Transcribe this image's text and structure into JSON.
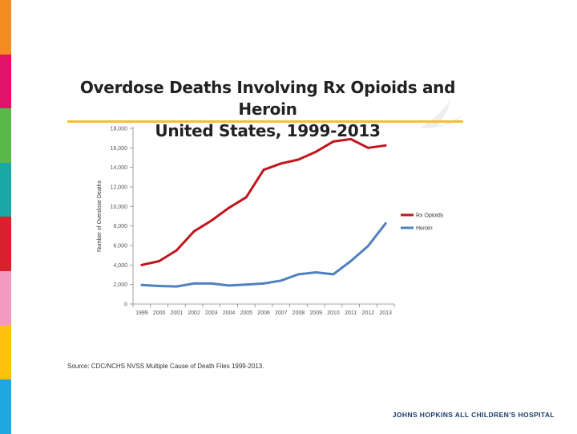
{
  "slide": {
    "title_line1": "Overdose Deaths Involving Rx Opioids and Heroin",
    "title_line2": "United States, 1999-2013",
    "source": "Source: CDC/NCHS NVSS Multiple Cause of Death Files 1999-2013.",
    "footer": "JOHNS HOPKINS ALL CHILDREN'S HOSPITAL"
  },
  "colors": {
    "stripes": [
      "#f68b1f",
      "#e1126a",
      "#5ab946",
      "#18a8a6",
      "#d8202f",
      "#f49ac1",
      "#fec10d",
      "#1ea8e0"
    ],
    "rule": "#f5c12e",
    "footer": "#1d3c6e",
    "swoosh": "#eeeeee"
  },
  "chart_data": {
    "type": "line",
    "title": "",
    "xlabel": "",
    "ylabel": "Number of Overdose Deaths",
    "ylim": [
      0,
      18000
    ],
    "yticks": [
      0,
      2000,
      4000,
      6000,
      8000,
      10000,
      12000,
      14000,
      16000,
      18000
    ],
    "ytick_labels": [
      "0",
      "2,000",
      "4,000",
      "6,000",
      "8,000",
      "10,000",
      "12,000",
      "14,000",
      "16,000",
      "18,000"
    ],
    "categories": [
      "1999",
      "2000",
      "2001",
      "2002",
      "2003",
      "2004",
      "2005",
      "2006",
      "2007",
      "2008",
      "2009",
      "2010",
      "2011",
      "2012",
      "2013"
    ],
    "legend_position": "right",
    "series": [
      {
        "name": "Rx Opioids",
        "color": "#c0161d",
        "values": [
          4000,
          4400,
          5500,
          7450,
          8550,
          9850,
          10950,
          13750,
          14400,
          14800,
          15600,
          16650,
          16900,
          16000,
          16250
        ]
      },
      {
        "name": "Heroin",
        "color": "#4f81bd",
        "values": [
          1950,
          1850,
          1800,
          2100,
          2100,
          1900,
          2000,
          2100,
          2400,
          3050,
          3250,
          3050,
          4400,
          5950,
          8250
        ]
      }
    ]
  }
}
